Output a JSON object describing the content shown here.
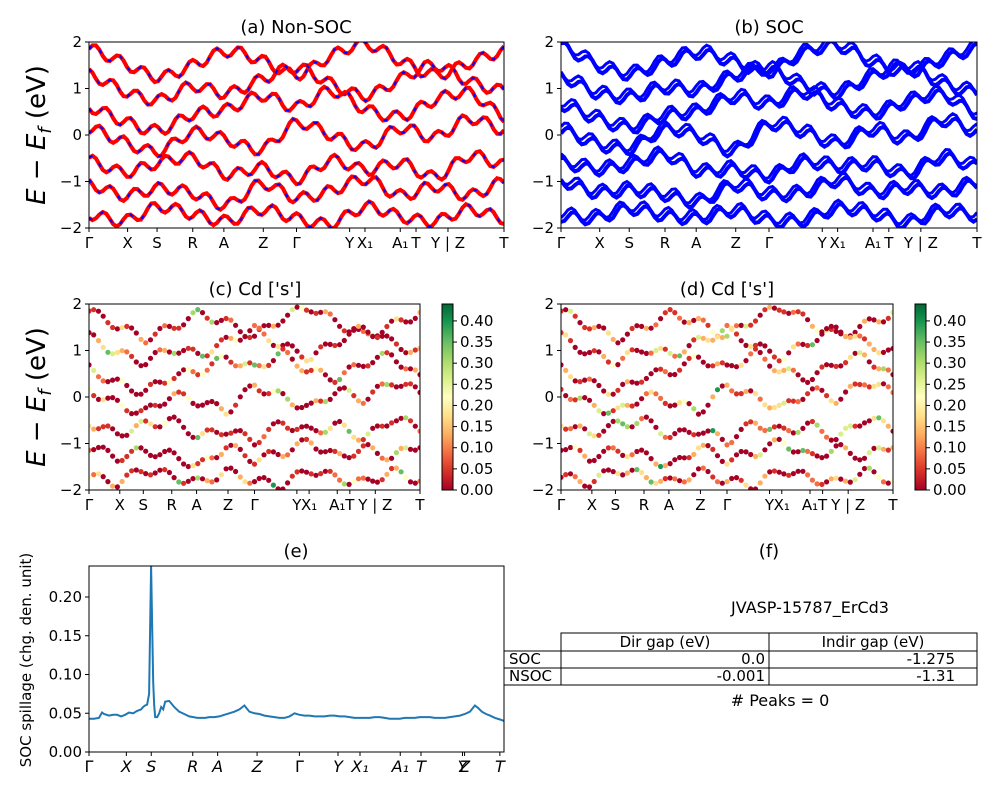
{
  "figure": {
    "panel_titles": {
      "a": "(a) Non-SOC",
      "b": "(b) SOC",
      "c": "(c)  Cd ['s']",
      "d": "(d) Cd ['s']",
      "e": "(e)",
      "f": "(f)"
    },
    "ylabel_band": "E − E_f (eV)",
    "ylabel_spillage": "SOC spillage (chg. den. unit)",
    "band_series_colors": {
      "non_soc": "#ff0000",
      "non_soc_dash": "#0000ff",
      "soc": "#0000ff"
    },
    "colormap": "RdYlGn",
    "table": {
      "title": "JVASP-15787_ErCd3",
      "col_labels": [
        "Dir gap (eV)",
        "Indir gap (eV)"
      ],
      "rows": [
        {
          "label": "SOC",
          "dir": "0.0",
          "indir": "-1.275"
        },
        {
          "label": "NSOC",
          "dir": "-0.001",
          "indir": "-1.31"
        }
      ],
      "peaks": "# Peaks = 0"
    }
  },
  "chart_data": [
    {
      "type": "line",
      "panel": "a",
      "title": "(a) Non-SOC",
      "ylabel": "E − E_f (eV)",
      "ylim": [
        -2,
        2
      ],
      "yticks": [
        -2,
        -1,
        0,
        1,
        2
      ],
      "xticks": [
        "Γ",
        "X",
        "S",
        "R",
        "A",
        "Z",
        "Γ",
        "Y",
        "X₁",
        "A₁",
        "T",
        "Y | Z",
        "T"
      ],
      "series": [
        {
          "values_note": "bands",
          "bands": [
            [
              1.85,
              1.55,
              1.25,
              1.5,
              1.8,
              1.6,
              1.3,
              1.7,
              1.95,
              1.6,
              1.3,
              1.55,
              1.8
            ],
            [
              1.3,
              0.95,
              0.75,
              1.05,
              0.9,
              1.2,
              1.45,
              1.1,
              0.85,
              1.2,
              1.5,
              1.15,
              0.95
            ],
            [
              0.6,
              0.3,
              0.1,
              0.45,
              0.55,
              0.85,
              0.6,
              0.95,
              0.55,
              0.4,
              0.75,
              0.9,
              0.4
            ],
            [
              0.15,
              -0.15,
              -0.35,
              0.05,
              -0.1,
              -0.3,
              0.25,
              0.0,
              -0.25,
              0.15,
              -0.05,
              0.35,
              0.1
            ],
            [
              -0.55,
              -0.8,
              -0.6,
              -0.5,
              -0.85,
              -0.7,
              -0.95,
              -0.55,
              -0.75,
              -0.6,
              -0.9,
              -0.45,
              -0.65
            ],
            [
              -1.05,
              -1.3,
              -1.15,
              -1.25,
              -1.5,
              -1.05,
              -1.35,
              -1.2,
              -0.95,
              -1.3,
              -1.1,
              -1.3,
              -1.0
            ],
            [
              -1.7,
              -1.85,
              -1.55,
              -1.7,
              -1.85,
              -1.6,
              -1.8,
              -1.9,
              -1.55,
              -1.75,
              -1.85,
              -1.6,
              -1.8
            ]
          ]
        }
      ]
    },
    {
      "type": "line",
      "panel": "b",
      "title": "(b) SOC",
      "ylim": [
        -2,
        2
      ],
      "yticks": [
        -2,
        -1,
        0,
        1,
        2
      ],
      "xticks": [
        "Γ",
        "X",
        "S",
        "R",
        "A",
        "Z",
        "Γ",
        "Y",
        "X₁",
        "A₁",
        "T",
        "Y | Z",
        "T"
      ],
      "series": [
        {
          "values_note": "bands",
          "bands": [
            [
              1.9,
              1.5,
              1.3,
              1.55,
              1.75,
              1.55,
              1.35,
              1.75,
              1.9,
              1.55,
              1.35,
              1.6,
              1.85
            ],
            [
              1.25,
              0.9,
              0.8,
              1.0,
              0.95,
              1.25,
              1.4,
              1.05,
              0.9,
              1.25,
              1.45,
              1.1,
              0.9
            ],
            [
              0.65,
              0.35,
              0.15,
              0.4,
              0.5,
              0.8,
              0.65,
              0.9,
              0.6,
              0.45,
              0.7,
              0.85,
              0.45
            ],
            [
              0.1,
              -0.2,
              -0.3,
              0.1,
              -0.05,
              -0.35,
              0.2,
              0.05,
              -0.2,
              0.1,
              -0.1,
              0.3,
              0.05
            ],
            [
              -0.6,
              -0.75,
              -0.65,
              -0.45,
              -0.8,
              -0.75,
              -0.9,
              -0.6,
              -0.7,
              -0.65,
              -0.85,
              -0.5,
              -0.7
            ],
            [
              -1.0,
              -1.25,
              -1.2,
              -1.3,
              -1.45,
              -1.1,
              -1.3,
              -1.25,
              -1.0,
              -1.25,
              -1.15,
              -1.25,
              -1.05
            ],
            [
              -1.75,
              -1.8,
              -1.6,
              -1.75,
              -1.8,
              -1.65,
              -1.85,
              -1.85,
              -1.6,
              -1.7,
              -1.9,
              -1.65,
              -1.75
            ]
          ]
        }
      ]
    },
    {
      "type": "scatter",
      "panel": "c",
      "title": "(c)  Cd ['s']",
      "ylabel": "E − E_f (eV)",
      "ylim": [
        -2,
        2
      ],
      "yticks": [
        -2,
        -1,
        0,
        1,
        2
      ],
      "xticks": [
        "Γ",
        "X",
        "S",
        "R",
        "A",
        "Z",
        "Γ",
        "Y",
        "X₁",
        "A₁",
        "T",
        "Y | Z",
        "T"
      ],
      "colorbar": {
        "range": [
          0.0,
          0.44
        ],
        "ticks": [
          "0.00",
          "0.05",
          "0.10",
          "0.15",
          "0.20",
          "0.25",
          "0.30",
          "0.35",
          "0.40"
        ]
      }
    },
    {
      "type": "scatter",
      "panel": "d",
      "title": "(d) Cd ['s']",
      "ylim": [
        -2,
        2
      ],
      "yticks": [
        -2,
        -1,
        0,
        1,
        2
      ],
      "xticks": [
        "Γ",
        "X",
        "S",
        "R",
        "A",
        "Z",
        "Γ",
        "Y",
        "X₁",
        "A₁",
        "T",
        "Y | Z",
        "T"
      ],
      "colorbar": {
        "range": [
          0.0,
          0.44
        ],
        "ticks": [
          "0.00",
          "0.05",
          "0.10",
          "0.15",
          "0.20",
          "0.25",
          "0.30",
          "0.35",
          "0.40"
        ]
      }
    },
    {
      "type": "line",
      "panel": "e",
      "title": "(e)",
      "ylabel": "SOC spillage (chg. den. unit)",
      "ylim": [
        0,
        0.24
      ],
      "yticks": [
        "0.00",
        "0.05",
        "0.10",
        "0.15",
        "0.20"
      ],
      "xticks": [
        "Γ",
        "X",
        "S",
        "R",
        "A",
        "Z",
        "Γ",
        "Y",
        "X₁",
        "A₁",
        "T",
        "Y",
        "Z",
        "T"
      ],
      "series": [
        {
          "name": "",
          "color": "#1f77b4",
          "x": [
            0,
            5,
            10,
            13,
            15,
            20,
            24,
            28,
            32,
            36,
            40,
            44,
            48,
            52,
            54,
            56,
            58,
            60,
            62,
            63,
            64,
            65,
            66,
            68,
            70,
            72,
            74,
            76,
            80,
            85,
            90,
            95,
            100,
            104,
            108,
            112,
            116,
            120,
            125,
            130,
            135,
            140,
            145,
            150,
            155,
            160,
            165,
            170,
            175,
            180,
            185,
            190,
            195,
            200,
            205,
            210,
            215,
            220,
            225,
            230,
            235,
            240,
            245,
            250,
            255,
            260,
            265,
            270,
            275,
            280,
            285,
            290,
            295,
            300,
            305,
            310,
            315,
            320,
            325,
            330,
            335,
            340,
            345,
            350,
            355,
            360,
            365,
            370,
            375,
            380,
            385,
            388,
            392,
            396,
            400,
            405,
            410,
            414
          ],
          "values": [
            0.043,
            0.043,
            0.044,
            0.051,
            0.049,
            0.047,
            0.048,
            0.048,
            0.046,
            0.048,
            0.051,
            0.05,
            0.053,
            0.055,
            0.058,
            0.06,
            0.061,
            0.075,
            0.24,
            0.16,
            0.09,
            0.06,
            0.045,
            0.045,
            0.05,
            0.058,
            0.055,
            0.065,
            0.066,
            0.058,
            0.052,
            0.049,
            0.046,
            0.045,
            0.044,
            0.044,
            0.044,
            0.045,
            0.045,
            0.046,
            0.048,
            0.05,
            0.052,
            0.055,
            0.06,
            0.052,
            0.05,
            0.049,
            0.047,
            0.046,
            0.045,
            0.044,
            0.044,
            0.046,
            0.05,
            0.048,
            0.047,
            0.047,
            0.046,
            0.046,
            0.046,
            0.047,
            0.047,
            0.046,
            0.046,
            0.045,
            0.044,
            0.044,
            0.044,
            0.044,
            0.045,
            0.045,
            0.044,
            0.043,
            0.043,
            0.043,
            0.044,
            0.044,
            0.044,
            0.045,
            0.045,
            0.045,
            0.044,
            0.044,
            0.044,
            0.045,
            0.046,
            0.047,
            0.049,
            0.052,
            0.06,
            0.057,
            0.052,
            0.049,
            0.047,
            0.044,
            0.042,
            0.04
          ]
        }
      ]
    }
  ]
}
